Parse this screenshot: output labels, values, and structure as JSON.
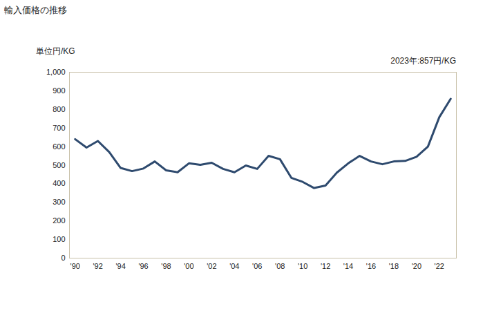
{
  "chart_data": {
    "type": "line",
    "title": "輸入価格の推移",
    "y_label": "単位円/KG",
    "annotation": "2023年:857円/KG",
    "color": "#2e4a6e",
    "x": [
      1990,
      1991,
      1992,
      1993,
      1994,
      1995,
      1996,
      1997,
      1998,
      1999,
      2000,
      2001,
      2002,
      2003,
      2004,
      2005,
      2006,
      2007,
      2008,
      2009,
      2010,
      2011,
      2012,
      2013,
      2014,
      2015,
      2016,
      2017,
      2018,
      2019,
      2020,
      2021,
      2022,
      2023
    ],
    "values": [
      640,
      595,
      630,
      570,
      485,
      468,
      482,
      520,
      472,
      462,
      510,
      502,
      513,
      480,
      462,
      498,
      480,
      550,
      532,
      432,
      410,
      377,
      390,
      460,
      510,
      550,
      520,
      505,
      520,
      523,
      545,
      600,
      758,
      857
    ],
    "xlim": [
      1989.5,
      2023.5
    ],
    "xticks": [
      {
        "value": 1990,
        "label": "'90"
      },
      {
        "value": 1992,
        "label": "'92"
      },
      {
        "value": 1994,
        "label": "'94"
      },
      {
        "value": 1996,
        "label": "'96"
      },
      {
        "value": 1998,
        "label": "'98"
      },
      {
        "value": 2000,
        "label": "'00"
      },
      {
        "value": 2002,
        "label": "'02"
      },
      {
        "value": 2004,
        "label": "'04"
      },
      {
        "value": 2006,
        "label": "'06"
      },
      {
        "value": 2008,
        "label": "'08"
      },
      {
        "value": 2010,
        "label": "'10"
      },
      {
        "value": 2012,
        "label": "'12"
      },
      {
        "value": 2014,
        "label": "'14"
      },
      {
        "value": 2016,
        "label": "'16"
      },
      {
        "value": 2018,
        "label": "'18"
      },
      {
        "value": 2020,
        "label": "'20"
      },
      {
        "value": 2022,
        "label": "'22"
      }
    ],
    "ylim": [
      0,
      1000
    ],
    "yticks": [
      0,
      100,
      200,
      300,
      400,
      500,
      600,
      700,
      800,
      900,
      {
        "value": 1000,
        "label": "1,000"
      }
    ],
    "grid": false
  }
}
